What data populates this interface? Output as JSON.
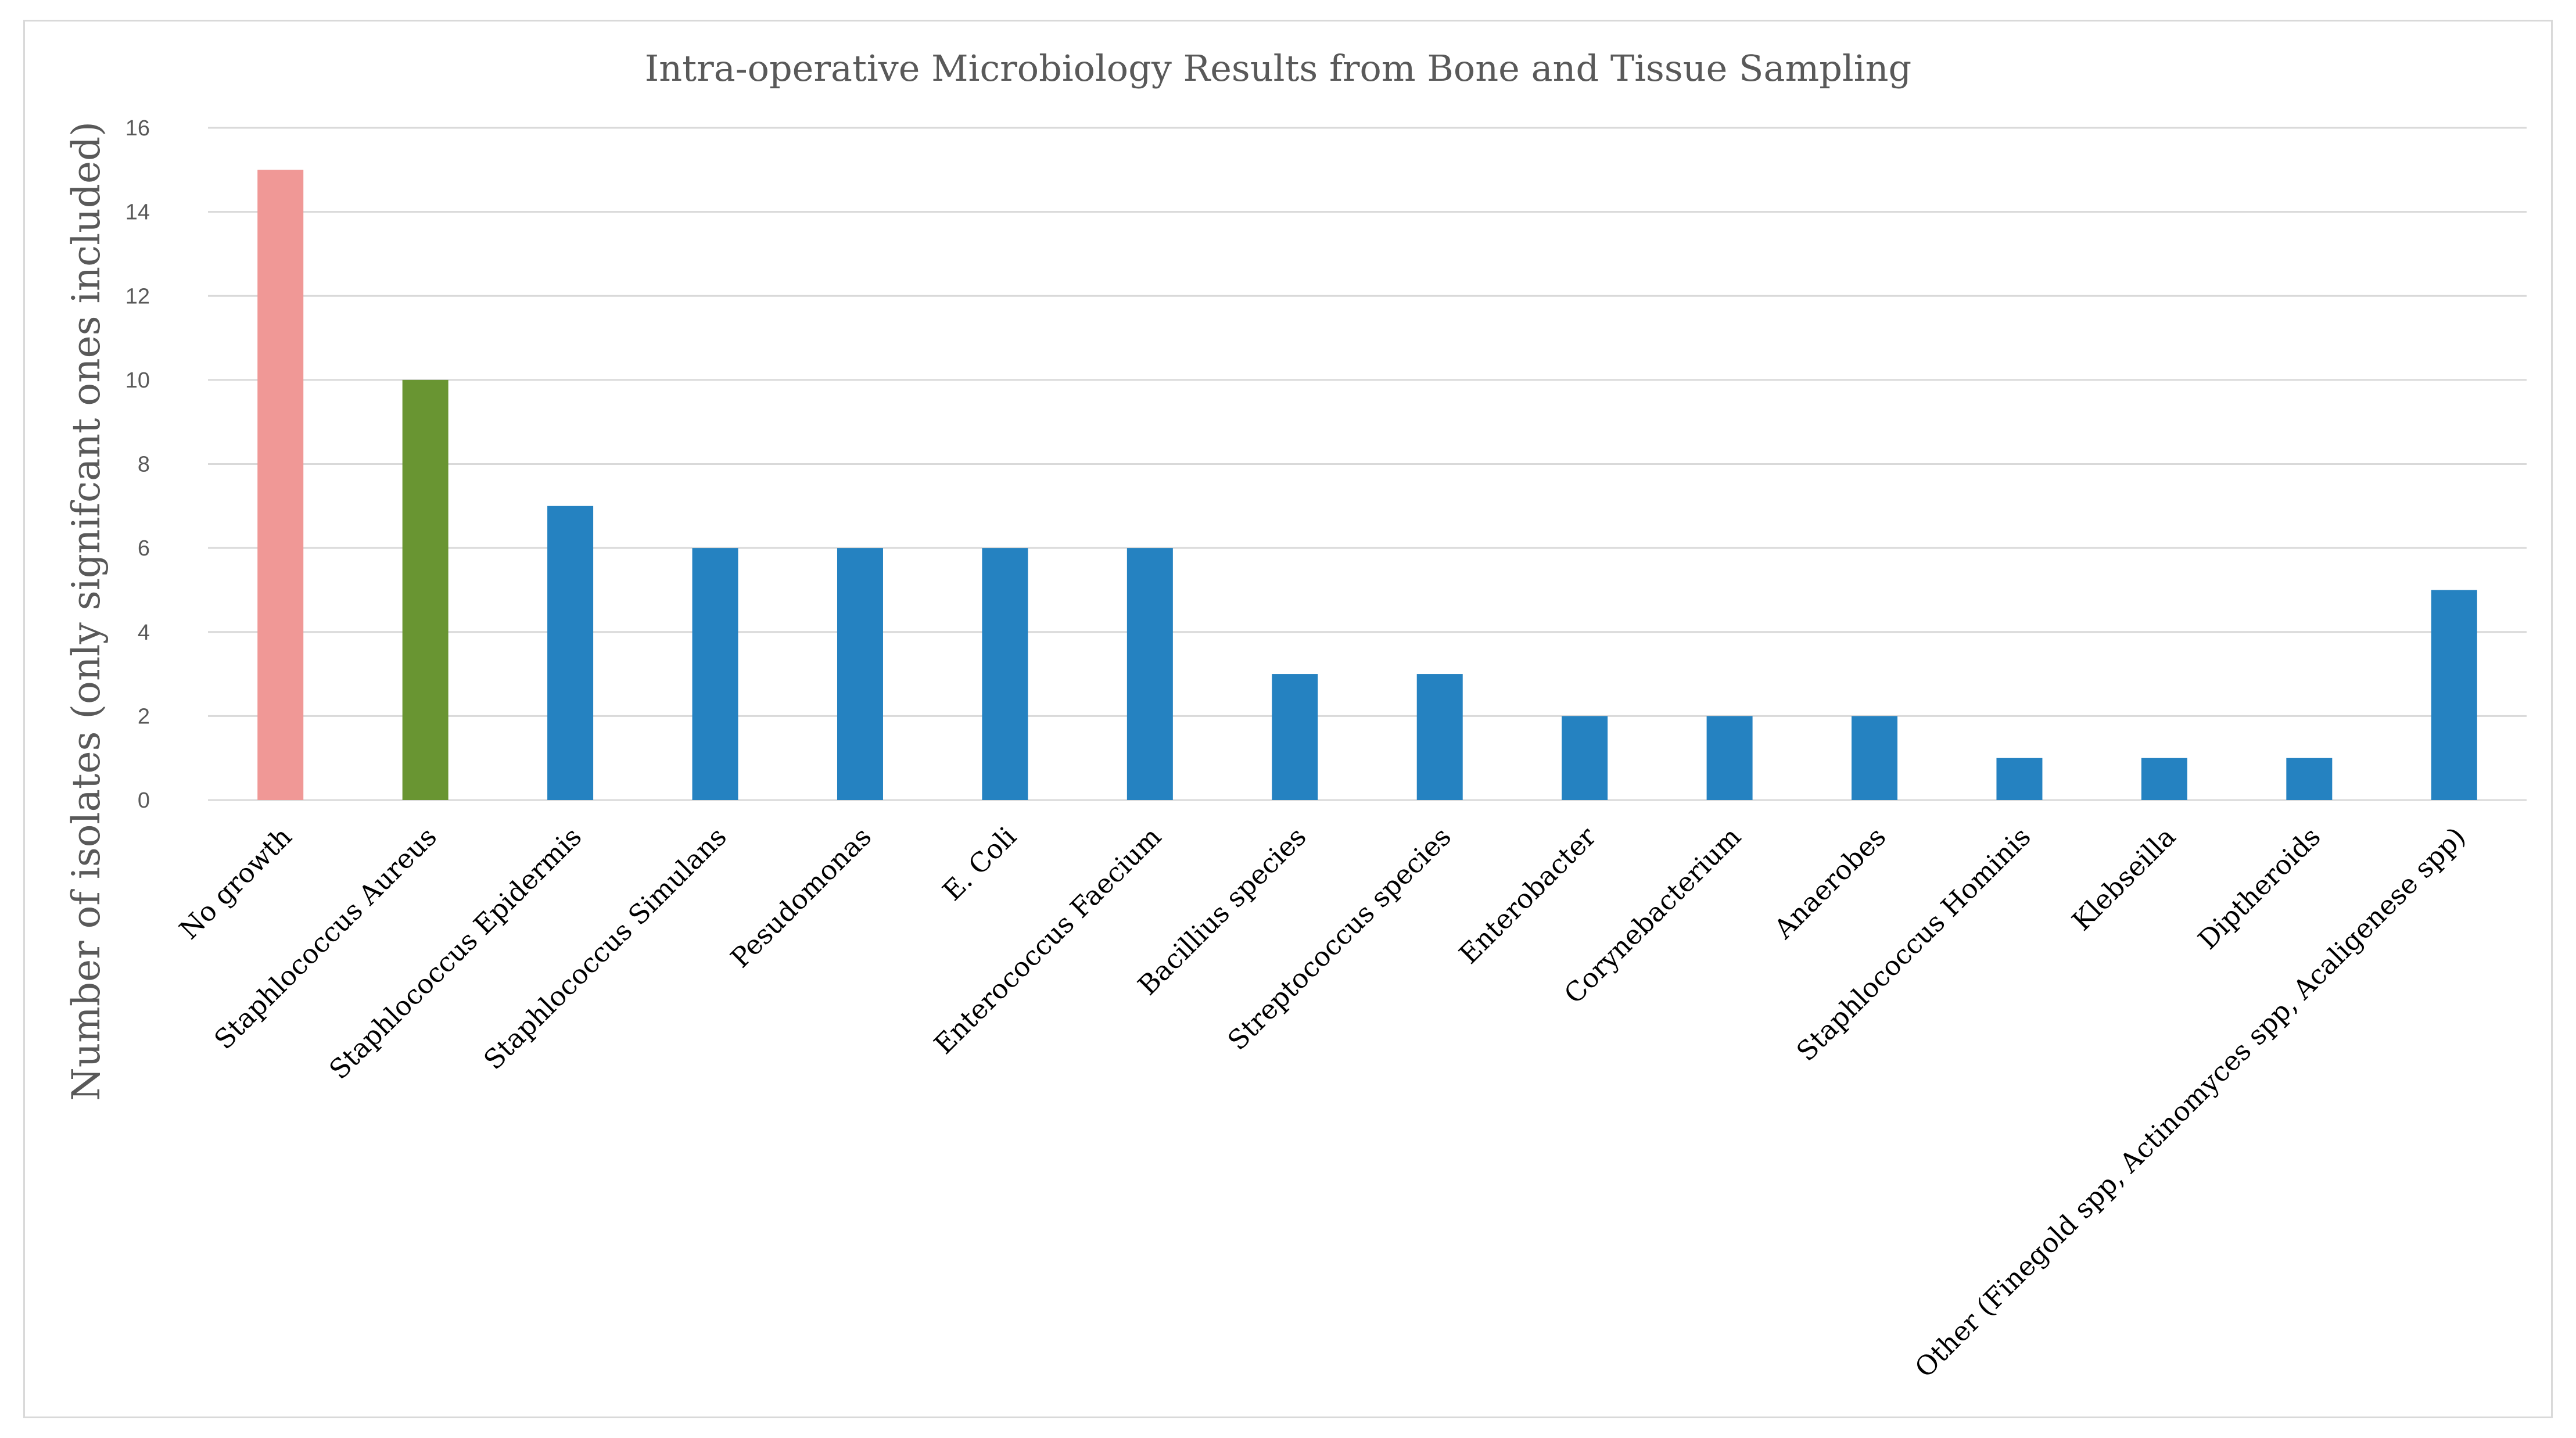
{
  "chart_data": {
    "type": "bar",
    "title": "Intra-operative Microbiology Results from Bone and Tissue Sampling",
    "xlabel": "",
    "ylabel": "Number of isolates (only signifcant ones included)",
    "ylim": [
      0,
      16
    ],
    "yticks": [
      0,
      2,
      4,
      6,
      8,
      10,
      12,
      14,
      16
    ],
    "grid": true,
    "legend": "none",
    "categories": [
      "No growth",
      "Staphlococcus Aureus",
      "Staphlococcus Epidermis",
      "Staphlococcus Simulans",
      "Pesudomonas",
      "E. Coli",
      "Enterococcus Faecium",
      "Bacillius species",
      "Streptococcus species",
      "Enterobacter",
      "Corynebacterium",
      "Anaerobes",
      "Staphlococcus Hominis",
      "Klebseilla",
      "Diptheroids",
      "Other (Finegold spp, Actinomyces spp, Acaligenese spp)"
    ],
    "values": [
      15,
      10,
      7,
      6,
      6,
      6,
      6,
      3,
      3,
      2,
      2,
      2,
      1,
      1,
      1,
      5
    ],
    "bar_colors": [
      "#f09896",
      "#699532",
      "#2582c1",
      "#2582c1",
      "#2582c1",
      "#2582c1",
      "#2582c1",
      "#2582c1",
      "#2582c1",
      "#2582c1",
      "#2582c1",
      "#2582c1",
      "#2582c1",
      "#2582c1",
      "#2582c1",
      "#2582c1"
    ]
  }
}
